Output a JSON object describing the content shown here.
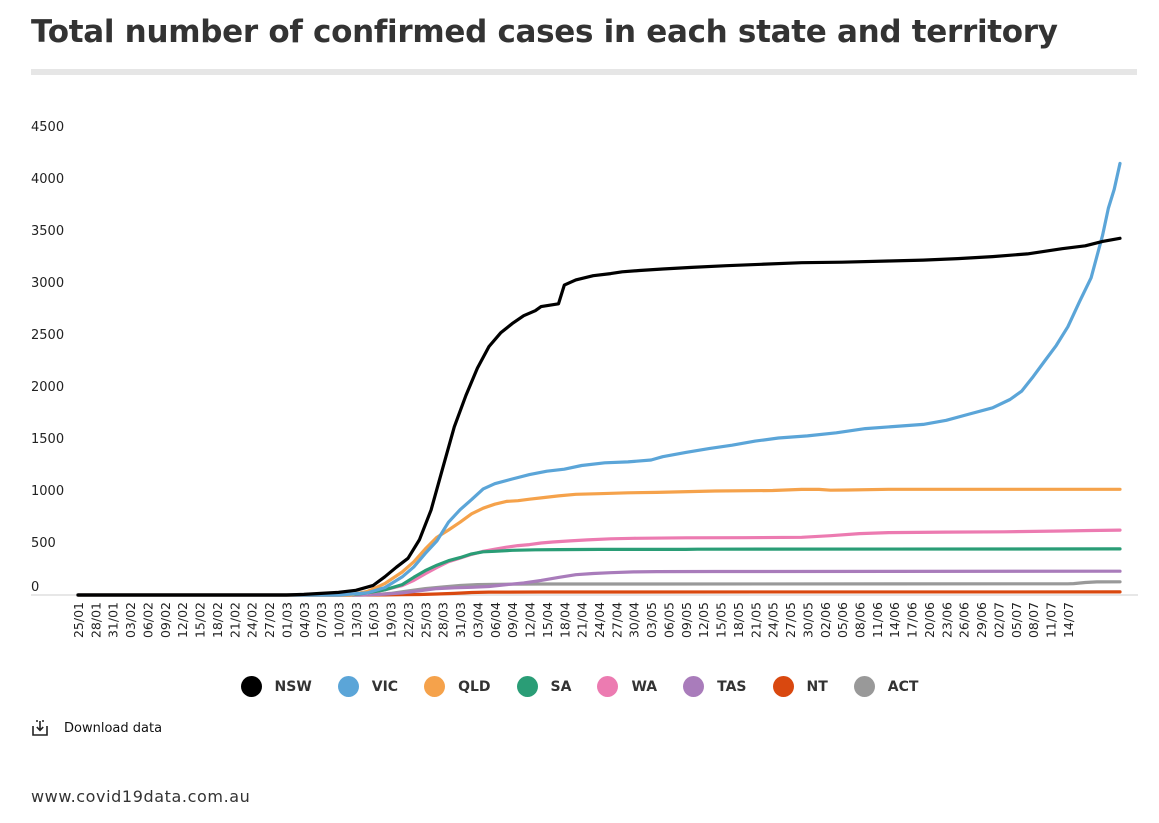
{
  "header": {
    "title": "Total number of confirmed cases in each state and territory"
  },
  "chart_data": {
    "type": "line",
    "title": "Total number of confirmed cases in each state and territory",
    "xlabel": "",
    "ylabel": "",
    "ylim": [
      0,
      4500
    ],
    "yticks": [
      0,
      500,
      1000,
      1500,
      2000,
      2500,
      3000,
      3500,
      4000,
      4500
    ],
    "grid": false,
    "x_start": "25/01",
    "x_end": "14/07",
    "xtick_labels": [
      "25/01",
      "28/01",
      "31/01",
      "03/02",
      "06/02",
      "09/02",
      "12/02",
      "15/02",
      "18/02",
      "21/02",
      "24/02",
      "27/02",
      "01/03",
      "04/03",
      "07/03",
      "10/03",
      "13/03",
      "16/03",
      "19/03",
      "22/03",
      "25/03",
      "28/03",
      "31/03",
      "03/04",
      "06/04",
      "09/04",
      "12/04",
      "15/04",
      "18/04",
      "21/04",
      "24/04",
      "27/04",
      "30/04",
      "03/05",
      "06/05",
      "09/05",
      "12/05",
      "15/05",
      "18/05",
      "21/05",
      "24/05",
      "27/05",
      "30/05",
      "02/06",
      "05/06",
      "08/06",
      "11/06",
      "14/06",
      "17/06",
      "20/06",
      "23/06",
      "26/06",
      "29/06",
      "02/07",
      "05/07",
      "08/07",
      "11/07",
      "14/07"
    ],
    "series": [
      {
        "name": "NSW",
        "color": "#000000",
        "points": [
          [
            0,
            0
          ],
          [
            36,
            0
          ],
          [
            39,
            6
          ],
          [
            42,
            15
          ],
          [
            45,
            25
          ],
          [
            48,
            45
          ],
          [
            51,
            92
          ],
          [
            53,
            175
          ],
          [
            55,
            267
          ],
          [
            57,
            353
          ],
          [
            59,
            533
          ],
          [
            61,
            818
          ],
          [
            63,
            1219
          ],
          [
            65,
            1617
          ],
          [
            67,
            1918
          ],
          [
            69,
            2182
          ],
          [
            71,
            2389
          ],
          [
            73,
            2520
          ],
          [
            75,
            2610
          ],
          [
            77,
            2686
          ],
          [
            79,
            2734
          ],
          [
            80,
            2773
          ],
          [
            83,
            2800
          ],
          [
            84,
            2980
          ],
          [
            86,
            3030
          ],
          [
            89,
            3070
          ],
          [
            92,
            3090
          ],
          [
            94,
            3108
          ],
          [
            97,
            3120
          ],
          [
            101,
            3135
          ],
          [
            106,
            3150
          ],
          [
            112,
            3166
          ],
          [
            118,
            3180
          ],
          [
            125,
            3195
          ],
          [
            132,
            3200
          ],
          [
            140,
            3212
          ],
          [
            146,
            3220
          ],
          [
            152,
            3235
          ],
          [
            158,
            3254
          ],
          [
            164,
            3280
          ],
          [
            170,
            3330
          ],
          [
            174,
            3358
          ],
          [
            177,
            3400
          ],
          [
            180,
            3430
          ]
        ]
      },
      {
        "name": "VIC",
        "color": "#5ba5d8",
        "points": [
          [
            0,
            0
          ],
          [
            45,
            0
          ],
          [
            50,
            20
          ],
          [
            53,
            71
          ],
          [
            56,
            174
          ],
          [
            58,
            270
          ],
          [
            60,
            400
          ],
          [
            62,
            520
          ],
          [
            64,
            700
          ],
          [
            66,
            820
          ],
          [
            68,
            917
          ],
          [
            70,
            1020
          ],
          [
            72,
            1070
          ],
          [
            75,
            1115
          ],
          [
            78,
            1158
          ],
          [
            81,
            1190
          ],
          [
            84,
            1210
          ],
          [
            87,
            1245
          ],
          [
            91,
            1271
          ],
          [
            95,
            1280
          ],
          [
            99,
            1298
          ],
          [
            101,
            1330
          ],
          [
            105,
            1371
          ],
          [
            109,
            1408
          ],
          [
            113,
            1440
          ],
          [
            117,
            1480
          ],
          [
            121,
            1510
          ],
          [
            126,
            1530
          ],
          [
            131,
            1560
          ],
          [
            136,
            1600
          ],
          [
            141,
            1620
          ],
          [
            146,
            1640
          ],
          [
            150,
            1680
          ],
          [
            154,
            1740
          ],
          [
            158,
            1800
          ],
          [
            161,
            1880
          ],
          [
            163,
            1960
          ],
          [
            165,
            2100
          ],
          [
            167,
            2250
          ],
          [
            169,
            2400
          ],
          [
            171,
            2580
          ],
          [
            173,
            2820
          ],
          [
            175,
            3050
          ],
          [
            177,
            3460
          ],
          [
            178,
            3720
          ],
          [
            179,
            3900
          ],
          [
            180,
            4150
          ]
        ]
      },
      {
        "name": "QLD",
        "color": "#f5a24b",
        "points": [
          [
            0,
            0
          ],
          [
            47,
            0
          ],
          [
            50,
            35
          ],
          [
            53,
            110
          ],
          [
            56,
            221
          ],
          [
            58,
            319
          ],
          [
            60,
            443
          ],
          [
            62,
            555
          ],
          [
            64,
            625
          ],
          [
            66,
            700
          ],
          [
            68,
            781
          ],
          [
            70,
            835
          ],
          [
            72,
            873
          ],
          [
            74,
            900
          ],
          [
            76,
            907
          ],
          [
            78,
            921
          ],
          [
            80,
            934
          ],
          [
            83,
            953
          ],
          [
            86,
            968
          ],
          [
            90,
            974
          ],
          [
            95,
            983
          ],
          [
            100,
            987
          ],
          [
            110,
            1000
          ],
          [
            120,
            1005
          ],
          [
            125,
            1015
          ],
          [
            128,
            1015
          ],
          [
            130,
            1008
          ],
          [
            133,
            1010
          ],
          [
            140,
            1016
          ],
          [
            180,
            1016
          ]
        ]
      },
      {
        "name": "SA",
        "color": "#2a9d76",
        "points": [
          [
            0,
            0
          ],
          [
            47,
            0
          ],
          [
            50,
            20
          ],
          [
            53,
            50
          ],
          [
            56,
            100
          ],
          [
            58,
            170
          ],
          [
            60,
            235
          ],
          [
            62,
            287
          ],
          [
            64,
            330
          ],
          [
            66,
            360
          ],
          [
            68,
            395
          ],
          [
            70,
            415
          ],
          [
            72,
            420
          ],
          [
            75,
            430
          ],
          [
            79,
            435
          ],
          [
            83,
            437
          ],
          [
            90,
            438
          ],
          [
            105,
            438
          ],
          [
            107,
            440
          ],
          [
            180,
            443
          ]
        ]
      },
      {
        "name": "WA",
        "color": "#ec7bb1",
        "points": [
          [
            0,
            0
          ],
          [
            47,
            0
          ],
          [
            50,
            15
          ],
          [
            53,
            50
          ],
          [
            56,
            90
          ],
          [
            58,
            140
          ],
          [
            60,
            205
          ],
          [
            62,
            264
          ],
          [
            64,
            320
          ],
          [
            66,
            355
          ],
          [
            68,
            390
          ],
          [
            70,
            420
          ],
          [
            72,
            440
          ],
          [
            74,
            460
          ],
          [
            76,
            475
          ],
          [
            78,
            485
          ],
          [
            80,
            500
          ],
          [
            82,
            510
          ],
          [
            85,
            520
          ],
          [
            88,
            530
          ],
          [
            92,
            540
          ],
          [
            96,
            545
          ],
          [
            105,
            550
          ],
          [
            115,
            551
          ],
          [
            125,
            555
          ],
          [
            130,
            570
          ],
          [
            135,
            590
          ],
          [
            140,
            600
          ],
          [
            150,
            605
          ],
          [
            160,
            608
          ],
          [
            170,
            615
          ],
          [
            175,
            620
          ],
          [
            180,
            624
          ]
        ]
      },
      {
        "name": "TAS",
        "color": "#a97cbb",
        "points": [
          [
            0,
            0
          ],
          [
            49,
            0
          ],
          [
            53,
            8
          ],
          [
            56,
            20
          ],
          [
            59,
            40
          ],
          [
            62,
            62
          ],
          [
            65,
            69
          ],
          [
            68,
            74
          ],
          [
            71,
            82
          ],
          [
            74,
            100
          ],
          [
            77,
            115
          ],
          [
            80,
            140
          ],
          [
            83,
            169
          ],
          [
            86,
            195
          ],
          [
            89,
            207
          ],
          [
            92,
            214
          ],
          [
            96,
            222
          ],
          [
            100,
            225
          ],
          [
            110,
            226
          ],
          [
            180,
            229
          ]
        ]
      },
      {
        "name": "NT",
        "color": "#d9480f",
        "points": [
          [
            0,
            0
          ],
          [
            50,
            0
          ],
          [
            53,
            1
          ],
          [
            56,
            3
          ],
          [
            59,
            5
          ],
          [
            62,
            10
          ],
          [
            65,
            15
          ],
          [
            68,
            24
          ],
          [
            71,
            28
          ],
          [
            74,
            28
          ],
          [
            80,
            29
          ],
          [
            180,
            30
          ]
        ]
      },
      {
        "name": "ACT",
        "color": "#999999",
        "points": [
          [
            0,
            0
          ],
          [
            48,
            0
          ],
          [
            51,
            4
          ],
          [
            54,
            15
          ],
          [
            57,
            39
          ],
          [
            60,
            62
          ],
          [
            63,
            77
          ],
          [
            66,
            91
          ],
          [
            69,
            100
          ],
          [
            72,
            103
          ],
          [
            75,
            104
          ],
          [
            80,
            106
          ],
          [
            100,
            106
          ],
          [
            171,
            108
          ],
          [
            172,
            110
          ],
          [
            174,
            120
          ],
          [
            176,
            126
          ],
          [
            180,
            127
          ]
        ]
      }
    ]
  },
  "legend": {
    "items": [
      {
        "label": "NSW",
        "color": "#000000"
      },
      {
        "label": "VIC",
        "color": "#5ba5d8"
      },
      {
        "label": "QLD",
        "color": "#f5a24b"
      },
      {
        "label": "SA",
        "color": "#2a9d76"
      },
      {
        "label": "WA",
        "color": "#ec7bb1"
      },
      {
        "label": "TAS",
        "color": "#a97cbb"
      },
      {
        "label": "NT",
        "color": "#d9480f"
      },
      {
        "label": "ACT",
        "color": "#999999"
      }
    ]
  },
  "download": {
    "label": "Download data",
    "icon": "download-icon"
  },
  "footer": {
    "source": "www.covid19data.com.au"
  }
}
